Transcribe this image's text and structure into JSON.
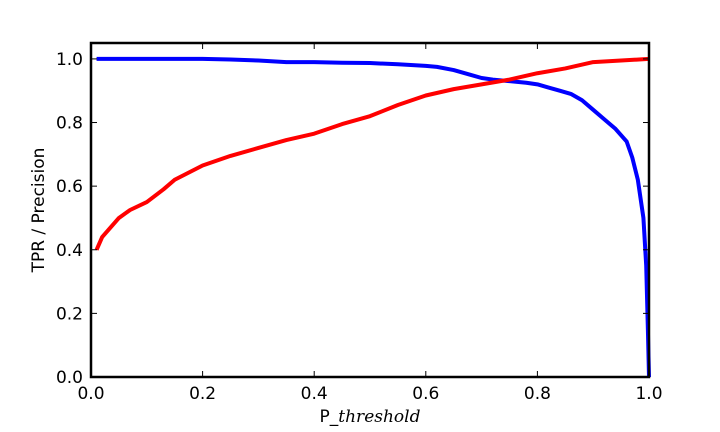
{
  "chart_data": {
    "type": "line",
    "title": "",
    "xlabel_prefix": "P_",
    "xlabel_italic": "threshold",
    "ylabel": "TPR / Precision",
    "xlim": [
      0.0,
      1.0
    ],
    "ylim": [
      0.0,
      1.05
    ],
    "xticks": [
      "0.0",
      "0.2",
      "0.4",
      "0.6",
      "0.8",
      "1.0"
    ],
    "yticks": [
      "0.0",
      "0.2",
      "0.4",
      "0.6",
      "0.8",
      "1.0"
    ],
    "grid": false,
    "legend": "none",
    "series": [
      {
        "color": "#0000ff",
        "x": [
          0.01,
          0.05,
          0.1,
          0.15,
          0.2,
          0.25,
          0.3,
          0.35,
          0.4,
          0.45,
          0.5,
          0.55,
          0.6,
          0.62,
          0.65,
          0.68,
          0.7,
          0.72,
          0.75,
          0.78,
          0.8,
          0.82,
          0.84,
          0.86,
          0.88,
          0.9,
          0.92,
          0.94,
          0.96,
          0.97,
          0.98,
          0.99,
          0.995,
          0.998,
          1.0
        ],
        "y": [
          1.0,
          1.0,
          1.0,
          1.0,
          1.0,
          0.998,
          0.995,
          0.99,
          0.99,
          0.988,
          0.987,
          0.983,
          0.978,
          0.975,
          0.965,
          0.95,
          0.94,
          0.935,
          0.93,
          0.925,
          0.92,
          0.91,
          0.9,
          0.89,
          0.87,
          0.84,
          0.81,
          0.78,
          0.74,
          0.69,
          0.62,
          0.5,
          0.35,
          0.15,
          0.0
        ]
      },
      {
        "color": "#ff0000",
        "x": [
          0.01,
          0.02,
          0.03,
          0.05,
          0.07,
          0.1,
          0.13,
          0.15,
          0.2,
          0.25,
          0.3,
          0.35,
          0.4,
          0.45,
          0.5,
          0.55,
          0.6,
          0.65,
          0.7,
          0.75,
          0.8,
          0.85,
          0.9,
          0.95,
          1.0
        ],
        "y": [
          0.4,
          0.44,
          0.46,
          0.5,
          0.525,
          0.55,
          0.59,
          0.62,
          0.665,
          0.695,
          0.72,
          0.745,
          0.765,
          0.795,
          0.82,
          0.855,
          0.885,
          0.905,
          0.92,
          0.935,
          0.955,
          0.97,
          0.99,
          0.995,
          1.0
        ]
      }
    ]
  }
}
